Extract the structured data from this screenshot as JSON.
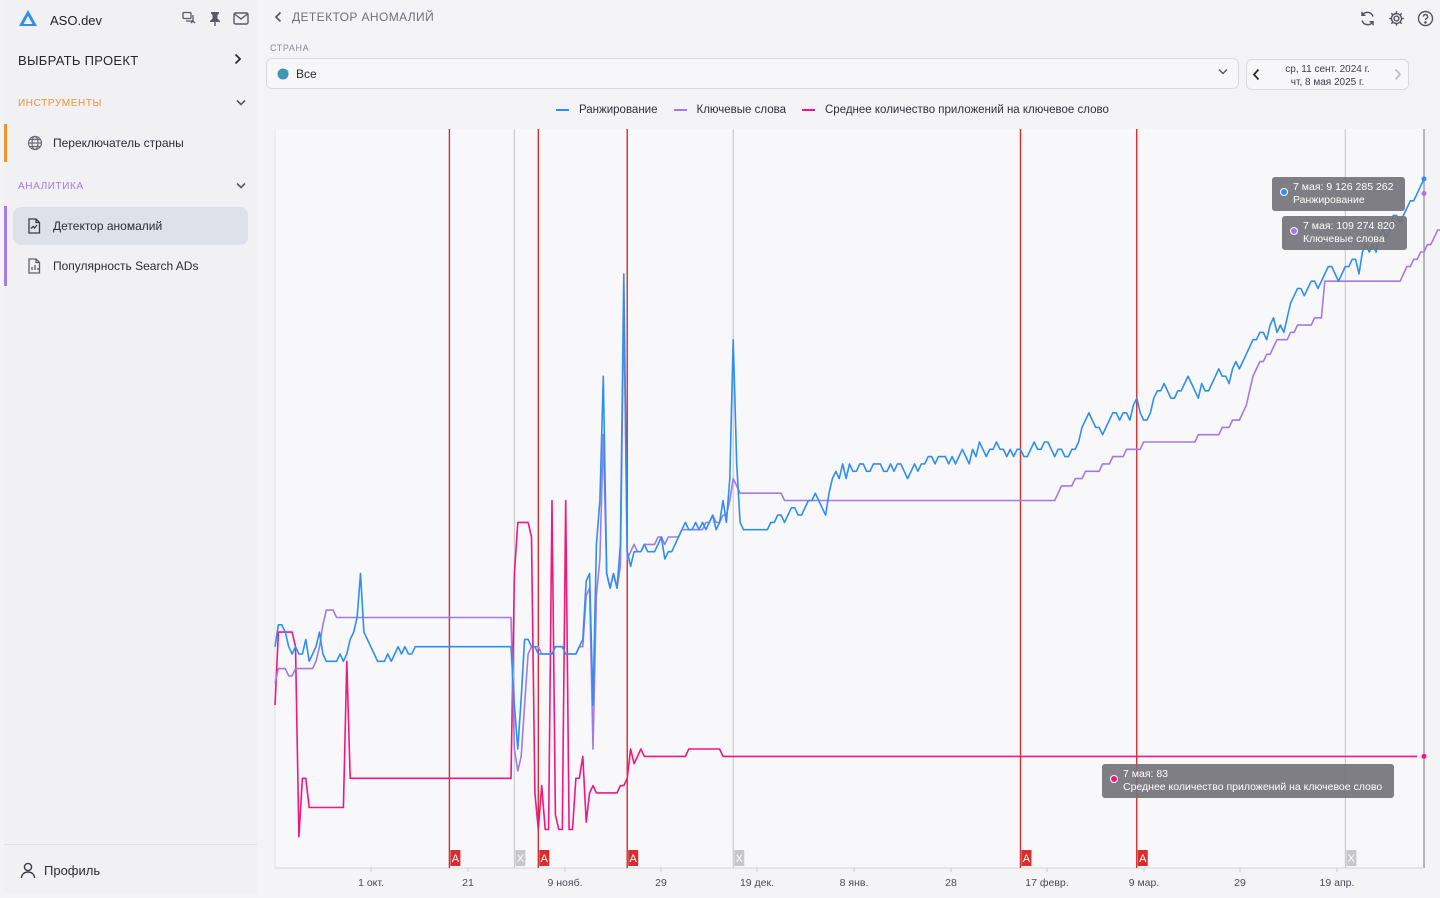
{
  "app": {
    "name": "ASO.dev"
  },
  "sidebar": {
    "project_label": "ВЫБРАТЬ ПРОЕКТ",
    "tools_label": "ИНСТРУМЕНТЫ",
    "analytics_label": "АНАЛИТИКА",
    "tools_items": [
      {
        "label": "Переключатель страны",
        "icon": "globe-icon"
      }
    ],
    "analytics_items": [
      {
        "label": "Детектор аномалий",
        "icon": "anomaly-doc-icon",
        "active": true
      },
      {
        "label": "Популярность Search ADs",
        "icon": "chart-doc-icon",
        "active": false
      }
    ],
    "profile_label": "Профиль",
    "tools_color": "#f0922e",
    "analytics_color": "#a77ae6"
  },
  "header": {
    "title": "ДЕТЕКТОР АНОМАЛИЙ"
  },
  "filters": {
    "country_label": "СТРАНА",
    "country_value": "Все",
    "date_from": "ср, 11 сент. 2024 г.",
    "date_to": "чт, 8 мая 2025 г."
  },
  "tooltips": [
    {
      "text1": "7 мая: 9 126 285 262",
      "text2": "Ранжирование",
      "color": "#2f8ff0"
    },
    {
      "text1": "7 мая: 109 274 820",
      "text2": "Ключевые слова",
      "color": "#a27ae8"
    },
    {
      "text1": "7 мая: 83",
      "text2": "Среднее количество приложений на ключевое слово",
      "color": "#f0187f"
    }
  ],
  "chart_data": {
    "type": "line",
    "x_ticks": [
      "1 окт.",
      "21",
      "9 нояб.",
      "29",
      "19 дек.",
      "8 янв.",
      "28",
      "17 февр.",
      "9 мар.",
      "29",
      "19 апр."
    ],
    "series": [
      {
        "name": "Ранжирование",
        "color": "#2f8ff0",
        "values": [
          0.3,
          0.33,
          0.33,
          0.32,
          0.3,
          0.29,
          0.3,
          0.29,
          0.29,
          0.31,
          0.28,
          0.29,
          0.3,
          0.32,
          0.29,
          0.28,
          0.28,
          0.28,
          0.28,
          0.29,
          0.28,
          0.29,
          0.31,
          0.32,
          0.34,
          0.4,
          0.32,
          0.31,
          0.3,
          0.29,
          0.28,
          0.28,
          0.28,
          0.29,
          0.28,
          0.29,
          0.3,
          0.29,
          0.3,
          0.29,
          0.29,
          0.3,
          0.3,
          0.3,
          0.3,
          0.3,
          0.3,
          0.3,
          0.3,
          0.3,
          0.3,
          0.3,
          0.3,
          0.3,
          0.3,
          0.3,
          0.3,
          0.3,
          0.3,
          0.3,
          0.3,
          0.3,
          0.3,
          0.3,
          0.3,
          0.3,
          0.3,
          0.3,
          0.3,
          0.3,
          0.22,
          0.16,
          0.23,
          0.31,
          0.31,
          0.3,
          0.3,
          0.29,
          0.29,
          0.29,
          0.29,
          0.29,
          0.3,
          0.3,
          0.3,
          0.29,
          0.29,
          0.29,
          0.29,
          0.3,
          0.31,
          0.39,
          0.4,
          0.22,
          0.44,
          0.5,
          0.67,
          0.4,
          0.38,
          0.4,
          0.38,
          0.44,
          0.81,
          0.43,
          0.41,
          0.43,
          0.43,
          0.43,
          0.44,
          0.43,
          0.43,
          0.43,
          0.44,
          0.45,
          0.42,
          0.43,
          0.43,
          0.44,
          0.45,
          0.46,
          0.47,
          0.46,
          0.46,
          0.47,
          0.46,
          0.47,
          0.46,
          0.47,
          0.48,
          0.46,
          0.47,
          0.5,
          0.47,
          0.53,
          0.72,
          0.55,
          0.47,
          0.46,
          0.46,
          0.46,
          0.46,
          0.46,
          0.46,
          0.46,
          0.46,
          0.47,
          0.47,
          0.48,
          0.48,
          0.47,
          0.48,
          0.49,
          0.49,
          0.48,
          0.48,
          0.49,
          0.5,
          0.5,
          0.51,
          0.5,
          0.49,
          0.48,
          0.51,
          0.53,
          0.54,
          0.53,
          0.55,
          0.53,
          0.55,
          0.54,
          0.54,
          0.55,
          0.55,
          0.54,
          0.54,
          0.55,
          0.55,
          0.55,
          0.54,
          0.54,
          0.55,
          0.54,
          0.55,
          0.55,
          0.54,
          0.53,
          0.54,
          0.55,
          0.54,
          0.55,
          0.55,
          0.56,
          0.56,
          0.55,
          0.56,
          0.56,
          0.56,
          0.55,
          0.56,
          0.55,
          0.56,
          0.57,
          0.56,
          0.55,
          0.57,
          0.56,
          0.58,
          0.57,
          0.56,
          0.57,
          0.57,
          0.58,
          0.57,
          0.57,
          0.56,
          0.57,
          0.56,
          0.57,
          0.57,
          0.56,
          0.56,
          0.57,
          0.58,
          0.57,
          0.57,
          0.58,
          0.58,
          0.57,
          0.56,
          0.57,
          0.57,
          0.56,
          0.56,
          0.57,
          0.57,
          0.58,
          0.6,
          0.61,
          0.62,
          0.61,
          0.6,
          0.6,
          0.59,
          0.6,
          0.61,
          0.62,
          0.62,
          0.61,
          0.62,
          0.62,
          0.61,
          0.63,
          0.64,
          0.62,
          0.61,
          0.61,
          0.62,
          0.64,
          0.65,
          0.65,
          0.66,
          0.65,
          0.64,
          0.64,
          0.65,
          0.65,
          0.66,
          0.67,
          0.66,
          0.65,
          0.64,
          0.66,
          0.65,
          0.65,
          0.66,
          0.67,
          0.68,
          0.67,
          0.67,
          0.66,
          0.68,
          0.69,
          0.68,
          0.69,
          0.7,
          0.71,
          0.72,
          0.72,
          0.73,
          0.73,
          0.72,
          0.74,
          0.75,
          0.73,
          0.74,
          0.73,
          0.75,
          0.77,
          0.78,
          0.79,
          0.79,
          0.78,
          0.79,
          0.8,
          0.8,
          0.79,
          0.8,
          0.81,
          0.82,
          0.82,
          0.81,
          0.8,
          0.81,
          0.82,
          0.82,
          0.83,
          0.83,
          0.81,
          0.84,
          0.85,
          0.84,
          0.85,
          0.84,
          0.86,
          0.87,
          0.86,
          0.87,
          0.89,
          0.89,
          0.88,
          0.89,
          0.9,
          0.91,
          0.91,
          0.92,
          0.93,
          0.94
        ]
      },
      {
        "name": "Ключевые слова",
        "color": "#a27ae8",
        "values": [
          0.25,
          0.27,
          0.27,
          0.27,
          0.26,
          0.26,
          0.27,
          0.27,
          0.27,
          0.27,
          0.27,
          0.27,
          0.28,
          0.3,
          0.33,
          0.35,
          0.35,
          0.35,
          0.34,
          0.34,
          0.34,
          0.34,
          0.34,
          0.34,
          0.34,
          0.34,
          0.34,
          0.34,
          0.34,
          0.34,
          0.34,
          0.34,
          0.34,
          0.34,
          0.34,
          0.34,
          0.34,
          0.34,
          0.34,
          0.34,
          0.34,
          0.34,
          0.34,
          0.34,
          0.34,
          0.34,
          0.34,
          0.34,
          0.34,
          0.34,
          0.34,
          0.34,
          0.34,
          0.34,
          0.34,
          0.34,
          0.34,
          0.34,
          0.34,
          0.34,
          0.34,
          0.34,
          0.34,
          0.34,
          0.34,
          0.34,
          0.34,
          0.34,
          0.34,
          0.34,
          0.16,
          0.13,
          0.15,
          0.22,
          0.29,
          0.3,
          0.3,
          0.3,
          0.29,
          0.29,
          0.29,
          0.29,
          0.3,
          0.3,
          0.3,
          0.29,
          0.29,
          0.29,
          0.29,
          0.3,
          0.3,
          0.37,
          0.38,
          0.16,
          0.37,
          0.42,
          0.59,
          0.4,
          0.38,
          0.4,
          0.38,
          0.41,
          0.77,
          0.42,
          0.43,
          0.44,
          0.43,
          0.43,
          0.44,
          0.44,
          0.44,
          0.44,
          0.45,
          0.45,
          0.44,
          0.45,
          0.45,
          0.45,
          0.45,
          0.46,
          0.46,
          0.46,
          0.46,
          0.46,
          0.46,
          0.46,
          0.47,
          0.47,
          0.48,
          0.47,
          0.47,
          0.48,
          0.48,
          0.5,
          0.53,
          0.52,
          0.51,
          0.51,
          0.51,
          0.51,
          0.51,
          0.51,
          0.51,
          0.51,
          0.51,
          0.51,
          0.51,
          0.51,
          0.51,
          0.5,
          0.5,
          0.5,
          0.5,
          0.5,
          0.5,
          0.5,
          0.5,
          0.5,
          0.5,
          0.5,
          0.5,
          0.5,
          0.5,
          0.5,
          0.5,
          0.5,
          0.5,
          0.5,
          0.5,
          0.5,
          0.5,
          0.5,
          0.5,
          0.5,
          0.5,
          0.5,
          0.5,
          0.5,
          0.5,
          0.5,
          0.5,
          0.5,
          0.5,
          0.5,
          0.5,
          0.5,
          0.5,
          0.5,
          0.5,
          0.5,
          0.5,
          0.5,
          0.5,
          0.5,
          0.5,
          0.5,
          0.5,
          0.5,
          0.5,
          0.5,
          0.5,
          0.5,
          0.5,
          0.5,
          0.5,
          0.5,
          0.5,
          0.5,
          0.5,
          0.5,
          0.5,
          0.5,
          0.5,
          0.5,
          0.5,
          0.5,
          0.5,
          0.5,
          0.5,
          0.5,
          0.5,
          0.5,
          0.5,
          0.5,
          0.5,
          0.5,
          0.5,
          0.5,
          0.5,
          0.51,
          0.52,
          0.52,
          0.52,
          0.52,
          0.53,
          0.53,
          0.53,
          0.54,
          0.54,
          0.54,
          0.54,
          0.54,
          0.55,
          0.55,
          0.55,
          0.56,
          0.56,
          0.56,
          0.56,
          0.57,
          0.57,
          0.57,
          0.57,
          0.57,
          0.58,
          0.58,
          0.58,
          0.58,
          0.58,
          0.58,
          0.58,
          0.58,
          0.58,
          0.58,
          0.58,
          0.58,
          0.58,
          0.58,
          0.58,
          0.58,
          0.59,
          0.59,
          0.59,
          0.59,
          0.59,
          0.59,
          0.59,
          0.6,
          0.6,
          0.6,
          0.61,
          0.61,
          0.61,
          0.62,
          0.63,
          0.65,
          0.67,
          0.68,
          0.69,
          0.69,
          0.7,
          0.7,
          0.71,
          0.72,
          0.72,
          0.72,
          0.72,
          0.73,
          0.73,
          0.74,
          0.74,
          0.74,
          0.74,
          0.74,
          0.75,
          0.75,
          0.75,
          0.8,
          0.8,
          0.8,
          0.8,
          0.8,
          0.8,
          0.8,
          0.8,
          0.8,
          0.8,
          0.8,
          0.8,
          0.8,
          0.8,
          0.8,
          0.8,
          0.8,
          0.8,
          0.8,
          0.8,
          0.8,
          0.8,
          0.8,
          0.81,
          0.82,
          0.82,
          0.83,
          0.83,
          0.84,
          0.84,
          0.85,
          0.85,
          0.86,
          0.87,
          0.87,
          0.88,
          0.89,
          0.9,
          0.91,
          0.92
        ]
      },
      {
        "name": "Среднее количество приложений на ключевое слово",
        "color": "#f0187f",
        "values": [
          0.22,
          0.32,
          0.32,
          0.32,
          0.32,
          0.32,
          0.3,
          0.04,
          0.12,
          0.12,
          0.08,
          0.08,
          0.08,
          0.08,
          0.08,
          0.08,
          0.08,
          0.08,
          0.08,
          0.08,
          0.08,
          0.28,
          0.12,
          0.12,
          0.12,
          0.12,
          0.12,
          0.12,
          0.12,
          0.12,
          0.12,
          0.12,
          0.12,
          0.12,
          0.12,
          0.12,
          0.12,
          0.12,
          0.12,
          0.12,
          0.12,
          0.12,
          0.12,
          0.12,
          0.12,
          0.12,
          0.12,
          0.12,
          0.12,
          0.12,
          0.12,
          0.12,
          0.12,
          0.12,
          0.12,
          0.12,
          0.12,
          0.12,
          0.12,
          0.12,
          0.12,
          0.12,
          0.12,
          0.12,
          0.12,
          0.12,
          0.12,
          0.12,
          0.12,
          0.12,
          0.4,
          0.47,
          0.47,
          0.47,
          0.47,
          0.45,
          0.1,
          0.05,
          0.11,
          0.05,
          0.05,
          0.5,
          0.07,
          0.05,
          0.05,
          0.5,
          0.05,
          0.05,
          0.12,
          0.12,
          0.15,
          0.06,
          0.1,
          0.11,
          0.1,
          0.1,
          0.1,
          0.1,
          0.1,
          0.1,
          0.1,
          0.11,
          0.11,
          0.12,
          0.16,
          0.14,
          0.15,
          0.16,
          0.15,
          0.15,
          0.15,
          0.15,
          0.15,
          0.15,
          0.15,
          0.15,
          0.15,
          0.15,
          0.15,
          0.15,
          0.15,
          0.16,
          0.16,
          0.16,
          0.16,
          0.16,
          0.16,
          0.16,
          0.16,
          0.16,
          0.16,
          0.15,
          0.15,
          0.15,
          0.15,
          0.15,
          0.15,
          0.15,
          0.15,
          0.15,
          0.15,
          0.15,
          0.15,
          0.15,
          0.15,
          0.15,
          0.15,
          0.15,
          0.15,
          0.15,
          0.15,
          0.15,
          0.15,
          0.15,
          0.15,
          0.15,
          0.15,
          0.15,
          0.15,
          0.15,
          0.15,
          0.15,
          0.15,
          0.15,
          0.15,
          0.15,
          0.15,
          0.15,
          0.15,
          0.15,
          0.15,
          0.15,
          0.15,
          0.15,
          0.15,
          0.15,
          0.15,
          0.15,
          0.15,
          0.15,
          0.15,
          0.15,
          0.15,
          0.15,
          0.15,
          0.15,
          0.15,
          0.15,
          0.15,
          0.15,
          0.15,
          0.15,
          0.15,
          0.15,
          0.15,
          0.15,
          0.15,
          0.15,
          0.15,
          0.15,
          0.15,
          0.15,
          0.15,
          0.15,
          0.15,
          0.15,
          0.15,
          0.15,
          0.15,
          0.15,
          0.15,
          0.15,
          0.15,
          0.15,
          0.15,
          0.15,
          0.15,
          0.15,
          0.15,
          0.15,
          0.15,
          0.15,
          0.15,
          0.15,
          0.15,
          0.15,
          0.15,
          0.15,
          0.15,
          0.15,
          0.15,
          0.15,
          0.15,
          0.15,
          0.15,
          0.15,
          0.15,
          0.15,
          0.15,
          0.15,
          0.15,
          0.15,
          0.15,
          0.15,
          0.15,
          0.15,
          0.15,
          0.15,
          0.15,
          0.15,
          0.15,
          0.15,
          0.15,
          0.15,
          0.15,
          0.15,
          0.15,
          0.15,
          0.15,
          0.15,
          0.15,
          0.15,
          0.15,
          0.15,
          0.15,
          0.15,
          0.15,
          0.15,
          0.15,
          0.15,
          0.15,
          0.15,
          0.15,
          0.15,
          0.15,
          0.15,
          0.15,
          0.15,
          0.15,
          0.15,
          0.15,
          0.15,
          0.15,
          0.15,
          0.15,
          0.15,
          0.15,
          0.15,
          0.15,
          0.15,
          0.15,
          0.15,
          0.15,
          0.15,
          0.15,
          0.15,
          0.15,
          0.15,
          0.15,
          0.15,
          0.15,
          0.15,
          0.15,
          0.15,
          0.15,
          0.15,
          0.15,
          0.15,
          0.15,
          0.15,
          0.15,
          0.15,
          0.15,
          0.15,
          0.15,
          0.15,
          0.15,
          0.15,
          0.15,
          0.15,
          0.15,
          0.15,
          0.15,
          0.15,
          0.15,
          0.15,
          0.15,
          0.15,
          0.15,
          0.15,
          0.15,
          0.15,
          0.15,
          0.15,
          0.15
        ]
      }
    ],
    "anomaly_markers": [
      {
        "label": "A",
        "kind": "anomaly",
        "color": "#d82d2d",
        "index": 51
      },
      {
        "label": "X",
        "kind": "excluded",
        "color": "#c6c6cc",
        "index": 70
      },
      {
        "label": "A",
        "kind": "anomaly",
        "color": "#d82d2d",
        "index": 77
      },
      {
        "label": "A",
        "kind": "anomaly",
        "color": "#d82d2d",
        "index": 103
      },
      {
        "label": "X",
        "kind": "excluded",
        "color": "#c6c6cc",
        "index": 134
      },
      {
        "label": "A",
        "kind": "anomaly",
        "color": "#d82d2d",
        "index": 218
      },
      {
        "label": "A",
        "kind": "anomaly",
        "color": "#d82d2d",
        "index": 252
      },
      {
        "label": "X",
        "kind": "excluded",
        "color": "#c6c6cc",
        "index": 313
      }
    ],
    "grid": false,
    "legend": "top-center"
  }
}
